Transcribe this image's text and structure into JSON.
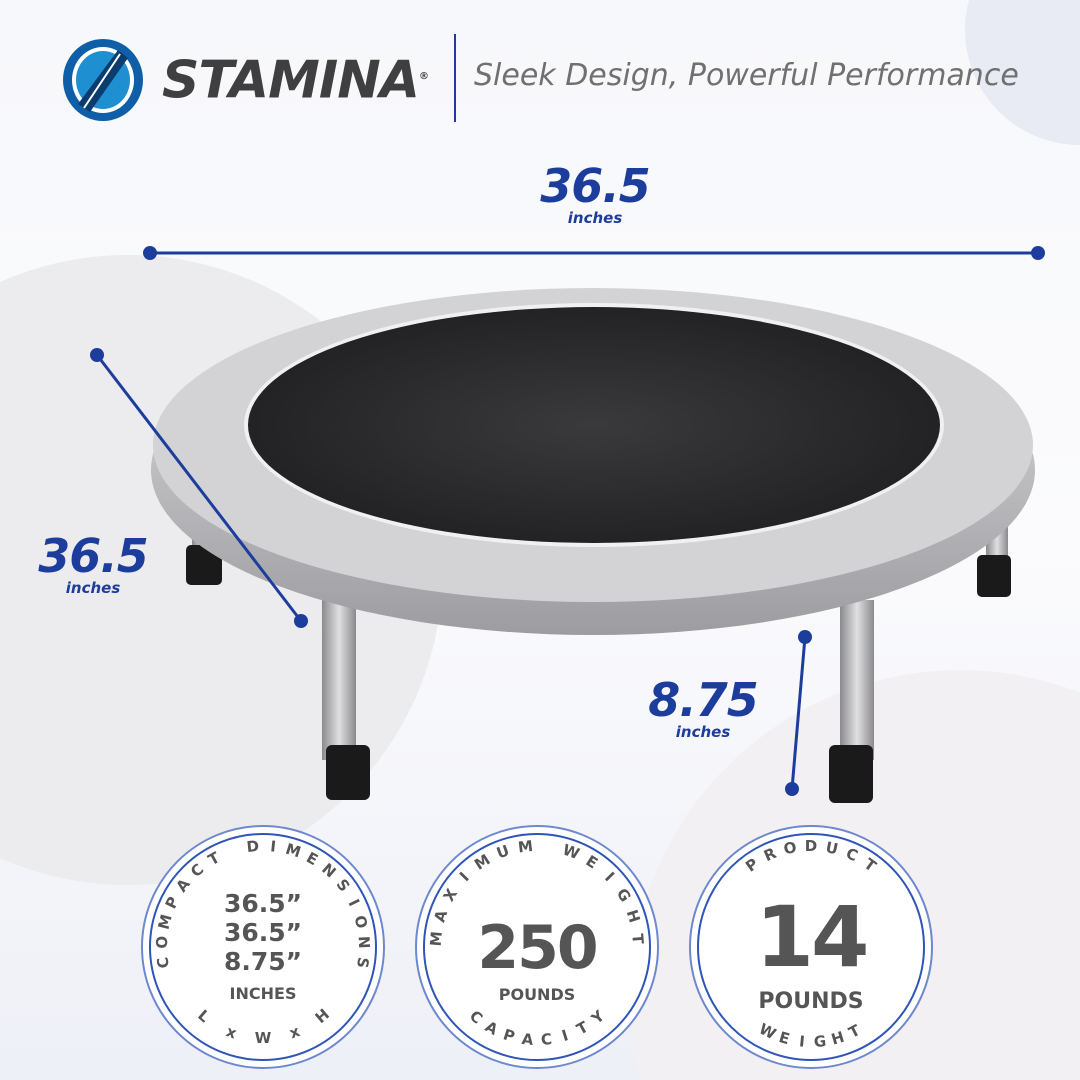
{
  "header": {
    "brand": "STAMINA",
    "registered_mark": "®",
    "tagline": "Sleek Design, Powerful Performance",
    "logo_icon": "stamina-logo-icon"
  },
  "dimensions": {
    "width": {
      "value": "36.5",
      "unit": "inches"
    },
    "depth": {
      "value": "36.5",
      "unit": "inches"
    },
    "height": {
      "value": "8.75",
      "unit": "inches"
    }
  },
  "colors": {
    "accent": "#1d3d9c",
    "badge_text": "#555555",
    "ring": "#4a6cc4"
  },
  "badges": [
    {
      "top": "COMPACT DIMENSIONS",
      "lines": [
        "36.5”",
        "36.5”",
        "8.75”"
      ],
      "unit": "INCHES",
      "bottom": "L x W x H"
    },
    {
      "top": "MAXIMUM WEIGHT",
      "value": "250",
      "unit": "POUNDS",
      "bottom": "CAPACITY"
    },
    {
      "top": "PRODUCT",
      "value": "14",
      "unit": "POUNDS",
      "bottom": "WEIGHT"
    }
  ]
}
